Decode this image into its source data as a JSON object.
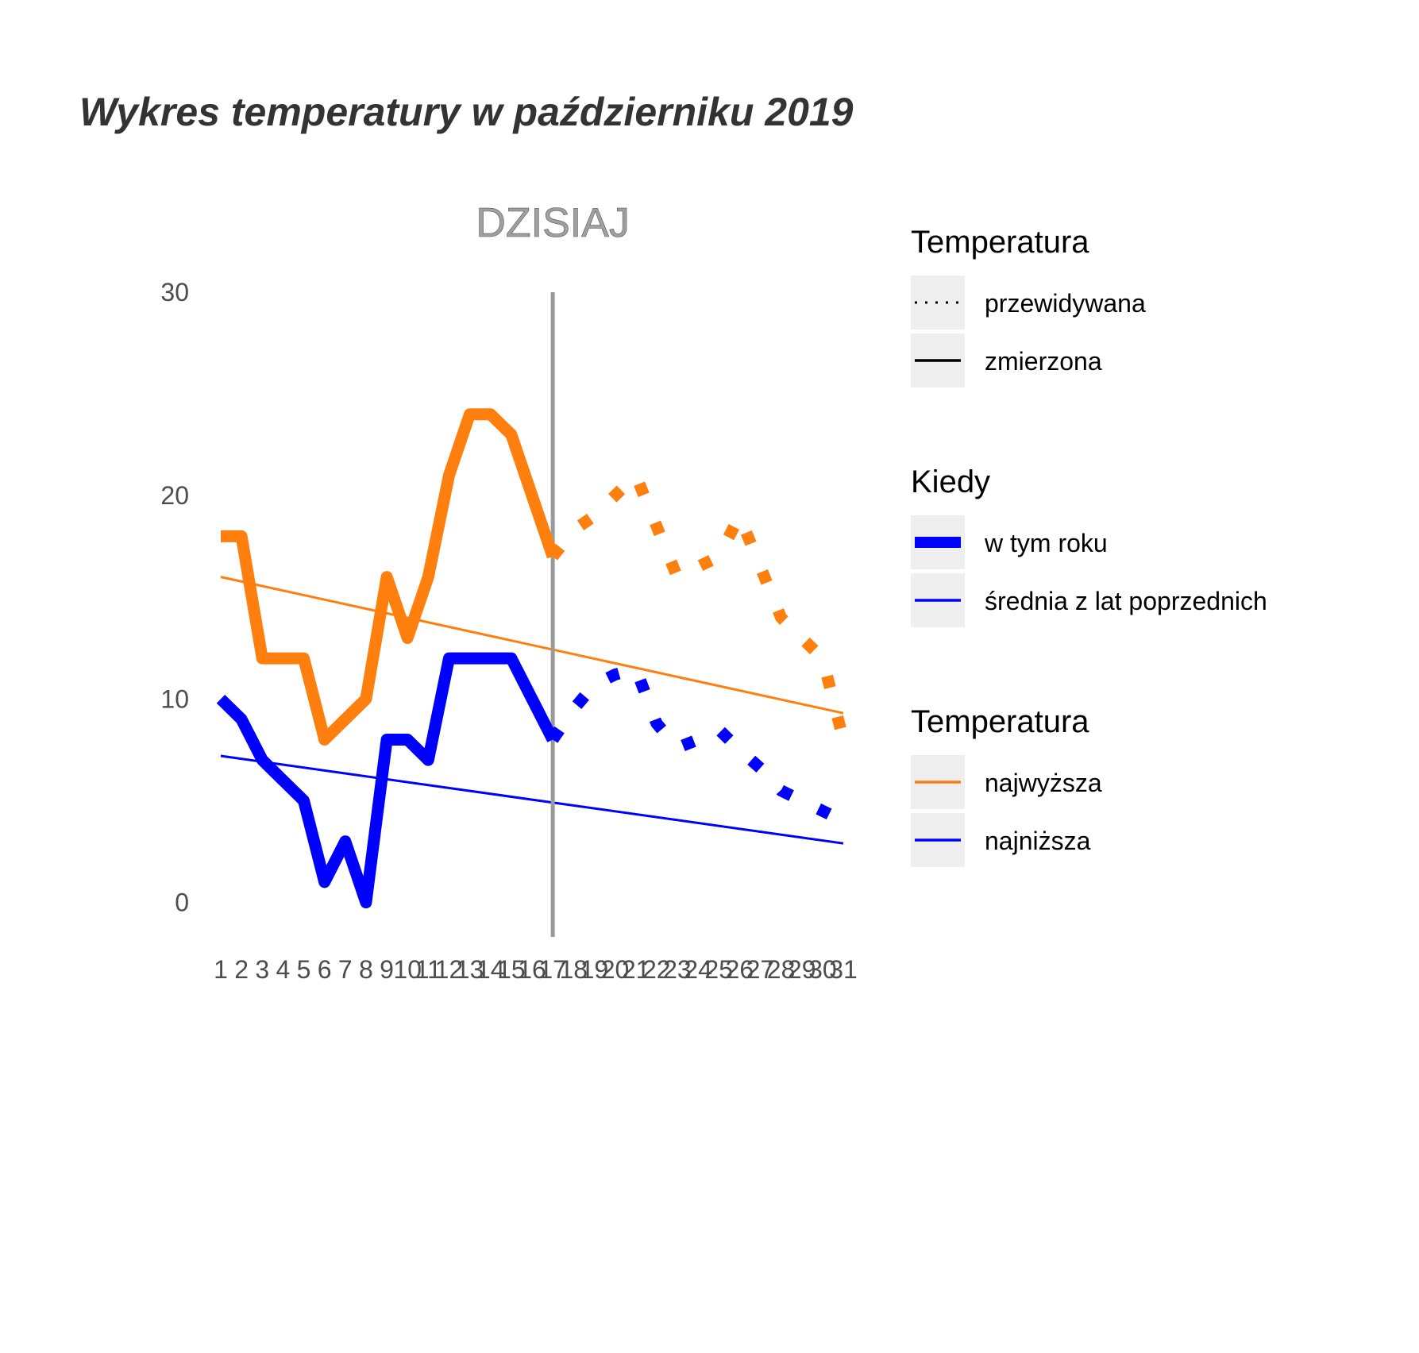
{
  "chart_data": {
    "type": "line",
    "title": "Wykres temperatury w październiku 2019",
    "xlabel": "",
    "ylabel": "",
    "x": [
      1,
      2,
      3,
      4,
      5,
      6,
      7,
      8,
      9,
      10,
      11,
      12,
      13,
      14,
      15,
      16,
      17,
      18,
      19,
      20,
      21,
      22,
      23,
      24,
      25,
      26,
      27,
      28,
      29,
      30,
      31
    ],
    "xlim": [
      1,
      31
    ],
    "ylim": [
      -1.7,
      30
    ],
    "yticks": [
      0,
      10,
      20,
      30
    ],
    "today_day": 17,
    "today_label": "DZISIAJ",
    "series": [
      {
        "name": "najwyższa",
        "kiedy": "w tym roku",
        "temperatura": "zmierzona",
        "color": "#FF7F0E",
        "x": [
          1,
          2,
          3,
          4,
          5,
          6,
          7,
          8,
          9,
          10,
          11,
          12,
          13,
          14,
          15,
          16,
          17
        ],
        "values": [
          18,
          18,
          12,
          12,
          12,
          8,
          9,
          10,
          16,
          13,
          16,
          21,
          24,
          24,
          23,
          20,
          17
        ]
      },
      {
        "name": "najniższa",
        "kiedy": "w tym roku",
        "temperatura": "zmierzona",
        "color": "#0000FF",
        "x": [
          1,
          2,
          3,
          4,
          5,
          6,
          7,
          8,
          9,
          10,
          11,
          12,
          13,
          14,
          15,
          16,
          17
        ],
        "values": [
          10,
          9,
          7,
          6,
          5,
          1,
          3,
          0,
          8,
          8,
          7,
          12,
          12,
          12,
          12,
          10,
          8
        ]
      },
      {
        "name": "najwyższa",
        "kiedy": "w tym roku",
        "temperatura": "przewidywana",
        "color": "#FF7F0E",
        "x": [
          17,
          18,
          19,
          20,
          21,
          22,
          23,
          24,
          25,
          26,
          27,
          28,
          29,
          30,
          31
        ],
        "values": [
          17,
          18.3,
          19,
          20,
          21,
          18.5,
          16,
          16.5,
          17,
          19,
          16.5,
          14,
          13,
          12,
          8
        ]
      },
      {
        "name": "najniższa",
        "kiedy": "w tym roku",
        "temperatura": "przewidywana",
        "color": "#0000FF",
        "x": [
          17,
          18,
          19,
          20,
          21,
          22,
          23,
          24,
          25,
          26,
          27,
          28,
          29,
          30,
          31
        ],
        "values": [
          8,
          9.5,
          10.7,
          11.2,
          11.5,
          8.8,
          7.6,
          8,
          8.5,
          7.5,
          6.6,
          5.5,
          5,
          4.5,
          4
        ]
      },
      {
        "name": "najwyższa",
        "kiedy": "średnia z lat poprzednich",
        "color": "#FF7F0E",
        "x": [
          1,
          31
        ],
        "values": [
          16,
          9.3
        ]
      },
      {
        "name": "najniższa",
        "kiedy": "średnia z lat poprzednich",
        "color": "#0000FF",
        "x": [
          1,
          31
        ],
        "values": [
          7.2,
          2.9
        ]
      }
    ],
    "legend_position": "right",
    "grid": false
  },
  "legend": {
    "group1_title": "Temperatura",
    "group1_items": [
      "przewidywana",
      "zmierzona"
    ],
    "group2_title": "Kiedy",
    "group2_items": [
      "w tym roku",
      "średnia z lat poprzednich"
    ],
    "group3_title": "Temperatura",
    "group3_items": [
      "najwyższa",
      "najniższa"
    ]
  }
}
